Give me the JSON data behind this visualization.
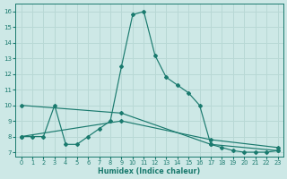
{
  "bg_color": "#cde8e6",
  "grid_color": "#b8d8d5",
  "line_color": "#1a7a6e",
  "xlabel": "Humidex (Indice chaleur)",
  "xlim": [
    -0.5,
    23.5
  ],
  "ylim": [
    6.7,
    16.5
  ],
  "xticks": [
    0,
    1,
    2,
    3,
    4,
    5,
    6,
    7,
    8,
    9,
    10,
    11,
    12,
    13,
    14,
    15,
    16,
    17,
    18,
    19,
    20,
    21,
    22,
    23
  ],
  "yticks": [
    7,
    8,
    9,
    10,
    11,
    12,
    13,
    14,
    15,
    16
  ],
  "line_main_x": [
    0,
    1,
    2,
    3,
    4,
    5,
    6,
    7,
    8,
    9,
    10,
    11,
    12,
    13,
    14,
    15,
    16,
    17,
    18,
    19,
    20,
    21,
    22,
    23
  ],
  "line_main_y": [
    8,
    8,
    8,
    10,
    7.5,
    7.5,
    8,
    8.5,
    9.0,
    12.5,
    15.8,
    16,
    13.2,
    11.8,
    11.3,
    10.8,
    10.0,
    7.5,
    7.3,
    7.1,
    7.0,
    7.0,
    7.0,
    7.1
  ],
  "trend1_x": [
    0,
    9,
    17,
    23
  ],
  "trend1_y": [
    10.0,
    9.5,
    7.5,
    7.1
  ],
  "trend2_x": [
    0,
    9,
    17,
    23
  ],
  "trend2_y": [
    8.0,
    9.0,
    7.8,
    7.3
  ]
}
